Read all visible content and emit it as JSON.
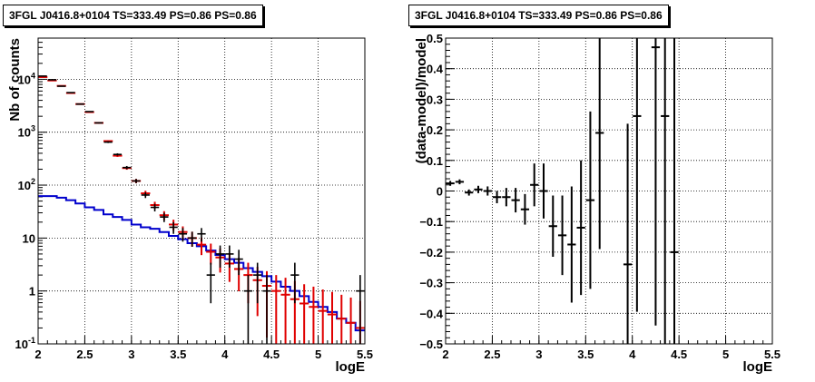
{
  "chart_data": [
    {
      "type": "scatter",
      "title": "3FGL J0416.8+0104 TS=333.49 PS=0.86 PS=0.86",
      "xlabel": "logE",
      "ylabel": "Nb of counts",
      "xlim": [
        2,
        5.5
      ],
      "ylim": [
        0.1,
        60000
      ],
      "yscale": "log",
      "grid": true,
      "x_ticks": [
        "2",
        "2.5",
        "3",
        "3.5",
        "4",
        "4.5",
        "5",
        "5.5"
      ],
      "y_ticks": [
        "10^4",
        "10^3",
        "10^2",
        "10",
        "1",
        "10^-1"
      ],
      "bin_width": 0.1,
      "series": [
        {
          "color": "#000000",
          "kind": "data-points",
          "x": [
            2.05,
            2.15,
            2.25,
            2.35,
            2.45,
            2.55,
            2.65,
            2.75,
            2.85,
            2.95,
            3.05,
            3.15,
            3.25,
            3.35,
            3.45,
            3.55,
            3.65,
            3.75,
            3.85,
            3.95,
            4.05,
            4.15,
            4.25,
            4.35,
            4.45,
            4.55,
            4.65,
            4.75,
            4.85,
            4.95,
            5.05,
            5.15,
            5.25,
            5.35,
            5.45
          ],
          "y": [
            11500,
            9800,
            7400,
            5600,
            3400,
            2450,
            1500,
            650,
            380,
            215,
            120,
            65,
            38,
            25,
            16,
            12,
            10,
            12,
            2,
            5,
            5,
            4,
            1,
            2,
            1,
            0,
            0,
            2,
            0,
            0,
            0,
            0,
            0,
            0,
            1
          ]
        },
        {
          "color": "#e00000",
          "kind": "model-points",
          "x": [
            2.05,
            2.15,
            2.25,
            2.35,
            2.45,
            2.55,
            2.65,
            2.75,
            2.85,
            2.95,
            3.05,
            3.15,
            3.25,
            3.35,
            3.45,
            3.55,
            3.65,
            3.75,
            3.85,
            3.95,
            4.05,
            4.15,
            4.25,
            4.35,
            4.45,
            4.55,
            4.65,
            4.75,
            4.85,
            4.95,
            5.05,
            5.15,
            5.25,
            5.35,
            5.45
          ],
          "y": [
            11000,
            9500,
            7500,
            5500,
            3400,
            2400,
            1500,
            680,
            360,
            210,
            120,
            70,
            42,
            27,
            18,
            13,
            10,
            7.5,
            5.5,
            4.3,
            3.3,
            2.6,
            2.0,
            1.6,
            1.25,
            1.0,
            0.85,
            0.7,
            0.58,
            0.5,
            0.42,
            0.36,
            0.3,
            0.25,
            0.2
          ]
        },
        {
          "color": "#0000cc",
          "kind": "step-histogram",
          "x": [
            2.05,
            2.15,
            2.25,
            2.35,
            2.45,
            2.55,
            2.65,
            2.75,
            2.85,
            2.95,
            3.05,
            3.15,
            3.25,
            3.35,
            3.45,
            3.55,
            3.65,
            3.75,
            3.85,
            3.95,
            4.05,
            4.15,
            4.25,
            4.35,
            4.45,
            4.55,
            4.65,
            4.75,
            4.85,
            4.95,
            5.05,
            5.15,
            5.25,
            5.35,
            5.45
          ],
          "y": [
            62,
            62,
            58,
            52,
            45,
            38,
            34,
            28,
            25,
            22,
            18,
            16,
            15,
            13,
            11,
            9.5,
            8,
            7,
            5.8,
            4.8,
            4.0,
            3.4,
            2.7,
            2.3,
            1.9,
            1.5,
            1.2,
            1.0,
            0.8,
            0.62,
            0.5,
            0.4,
            0.3,
            0.25,
            0.18
          ]
        }
      ]
    },
    {
      "type": "scatter",
      "title": "3FGL J0416.8+0104 TS=333.49 PS=0.86 PS=0.86",
      "xlabel": "logE",
      "ylabel": "(data-model)/model",
      "xlim": [
        2,
        5.5
      ],
      "ylim": [
        -0.5,
        0.5
      ],
      "grid": true,
      "x_ticks": [
        "2",
        "2.5",
        "3",
        "3.5",
        "4",
        "4.5",
        "5",
        "5.5"
      ],
      "y_ticks": [
        "0.5",
        "0.4",
        "0.3",
        "0.2",
        "0.1",
        "0",
        "−0.1",
        "−0.2",
        "−0.3",
        "−0.4",
        "−0.5"
      ],
      "bin_width": 0.1,
      "series": [
        {
          "color": "#000000",
          "x": [
            2.05,
            2.15,
            2.25,
            2.35,
            2.45,
            2.55,
            2.65,
            2.75,
            2.85,
            2.95,
            3.05,
            3.15,
            3.25,
            3.35,
            3.45,
            3.55,
            3.65,
            3.95,
            4.05,
            4.25,
            4.35,
            4.45
          ],
          "y": [
            0.025,
            0.03,
            -0.005,
            0.005,
            0.0,
            -0.02,
            -0.02,
            -0.03,
            -0.06,
            0.02,
            0.0,
            -0.115,
            -0.145,
            -0.175,
            -0.12,
            -0.03,
            0.19,
            -0.24,
            0.245,
            0.47,
            0.245,
            -0.2
          ],
          "err": [
            0.008,
            0.008,
            0.01,
            0.012,
            0.015,
            0.02,
            0.03,
            0.04,
            0.05,
            0.07,
            0.09,
            0.1,
            0.13,
            0.19,
            0.22,
            0.29,
            0.38,
            0.46,
            0.64,
            0.91,
            1.0,
            1.0
          ]
        }
      ]
    }
  ]
}
